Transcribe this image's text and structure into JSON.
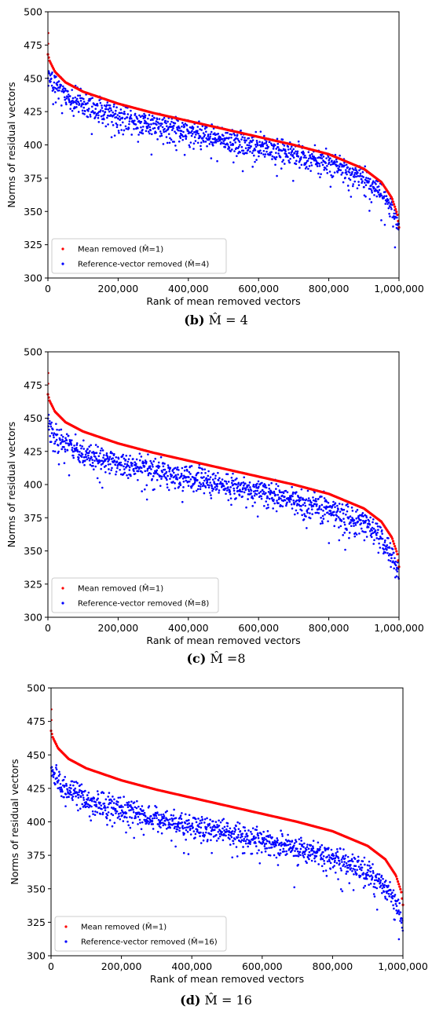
{
  "chart_data": [
    {
      "type": "scatter",
      "title": "",
      "xlabel": "Rank of mean removed vectors",
      "ylabel": "Norms of residual vectors",
      "xlim": [
        0,
        1000000
      ],
      "ylim": [
        300,
        500
      ],
      "x_ticks": [
        "0",
        "200,000",
        "400,000",
        "600,000",
        "800,000",
        "1,000,000"
      ],
      "y_ticks": [
        "300",
        "325",
        "350",
        "375",
        "400",
        "425",
        "450",
        "475",
        "500"
      ],
      "grid": false,
      "legend_position": "bottom-left",
      "caption_label": "(b)",
      "caption_math": "M̂ = 4",
      "series": [
        {
          "name": "Mean removed (M̂=1)",
          "color": "#ff0000",
          "x": [
            0,
            5000,
            20000,
            50000,
            100000,
            200000,
            300000,
            400000,
            500000,
            600000,
            700000,
            800000,
            900000,
            950000,
            980000,
            995000,
            1000000
          ],
          "values": [
            468,
            463,
            455,
            447,
            440,
            431,
            424,
            418,
            412,
            406,
            400,
            393,
            382,
            372,
            360,
            348,
            338
          ]
        },
        {
          "name": "Reference-vector removed (M̂=4)",
          "color": "#0000ff",
          "x": [
            0,
            20000,
            50000,
            100000,
            200000,
            300000,
            400000,
            500000,
            600000,
            700000,
            800000,
            900000,
            950000,
            980000,
            1000000
          ],
          "values": [
            452,
            445,
            438,
            430,
            422,
            416,
            410,
            404,
            399,
            393,
            386,
            375,
            365,
            352,
            335
          ]
        }
      ]
    },
    {
      "type": "scatter",
      "title": "",
      "xlabel": "Rank of mean removed vectors",
      "ylabel": "Norms of residual vectors",
      "xlim": [
        0,
        1000000
      ],
      "ylim": [
        300,
        500
      ],
      "x_ticks": [
        "0",
        "200,000",
        "400,000",
        "600,000",
        "800,000",
        "1,000,000"
      ],
      "y_ticks": [
        "300",
        "325",
        "350",
        "375",
        "400",
        "425",
        "450",
        "475",
        "500"
      ],
      "grid": false,
      "legend_position": "bottom-left",
      "caption_label": "(c)",
      "caption_math": "M̂ =8",
      "series": [
        {
          "name": "Mean removed (M̂=1)",
          "color": "#ff0000",
          "x": [
            0,
            5000,
            20000,
            50000,
            100000,
            200000,
            300000,
            400000,
            500000,
            600000,
            700000,
            800000,
            900000,
            950000,
            980000,
            995000,
            1000000
          ],
          "values": [
            468,
            463,
            455,
            447,
            440,
            431,
            424,
            418,
            412,
            406,
            400,
            393,
            382,
            372,
            360,
            348,
            338
          ]
        },
        {
          "name": "Reference-vector removed (M̂=8)",
          "color": "#0000ff",
          "x": [
            0,
            20000,
            50000,
            100000,
            200000,
            300000,
            400000,
            500000,
            600000,
            700000,
            800000,
            900000,
            950000,
            980000,
            1000000
          ],
          "values": [
            445,
            437,
            430,
            423,
            416,
            411,
            405,
            400,
            395,
            389,
            382,
            370,
            360,
            347,
            330
          ]
        }
      ]
    },
    {
      "type": "scatter",
      "title": "",
      "xlabel": "Rank of mean removed vectors",
      "ylabel": "Norms of residual vectors",
      "xlim": [
        0,
        1000000
      ],
      "ylim": [
        300,
        500
      ],
      "x_ticks": [
        "0",
        "200,000",
        "400,000",
        "600,000",
        "800,000",
        "1,000,000"
      ],
      "y_ticks": [
        "300",
        "325",
        "350",
        "375",
        "400",
        "425",
        "450",
        "475",
        "500"
      ],
      "grid": false,
      "legend_position": "bottom-left",
      "caption_label": "(d)",
      "caption_math": "M̂ = 16",
      "series": [
        {
          "name": "Mean removed (M̂=1)",
          "color": "#ff0000",
          "x": [
            0,
            5000,
            20000,
            50000,
            100000,
            200000,
            300000,
            400000,
            500000,
            600000,
            700000,
            800000,
            900000,
            950000,
            980000,
            995000,
            1000000
          ],
          "values": [
            468,
            463,
            455,
            447,
            440,
            431,
            424,
            418,
            412,
            406,
            400,
            393,
            382,
            372,
            360,
            348,
            338
          ]
        },
        {
          "name": "Reference-vector removed (M̂=16)",
          "color": "#0000ff",
          "x": [
            0,
            20000,
            50000,
            100000,
            200000,
            300000,
            400000,
            500000,
            600000,
            700000,
            800000,
            900000,
            950000,
            980000,
            1000000
          ],
          "values": [
            438,
            430,
            423,
            416,
            409,
            403,
            397,
            392,
            386,
            380,
            373,
            362,
            352,
            340,
            322
          ]
        }
      ]
    }
  ]
}
